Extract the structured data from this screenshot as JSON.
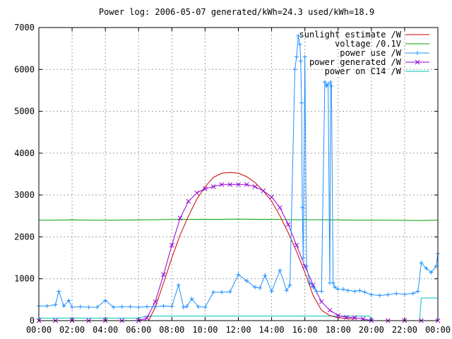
{
  "chart_data": {
    "type": "line",
    "title": "Power log: 2006-05-07 generated/kWh=24.3 used/kWh=18.9",
    "xlabel": "",
    "ylabel": "",
    "xlim": [
      0,
      24
    ],
    "ylim": [
      0,
      7000
    ],
    "x_ticks": [
      "00:00",
      "02:00",
      "04:00",
      "06:00",
      "08:00",
      "10:00",
      "12:00",
      "14:00",
      "16:00",
      "18:00",
      "20:00",
      "22:00",
      "00:00"
    ],
    "y_ticks": [
      "0",
      "1000",
      "2000",
      "3000",
      "4000",
      "5000",
      "6000",
      "7000"
    ],
    "grid": true,
    "legend_position": "top-right",
    "series": [
      {
        "name": "sunlight estimate /W",
        "color": "#cc0000",
        "marker": "none",
        "x": [
          6.6,
          7.0,
          7.5,
          8.0,
          8.5,
          9.0,
          9.5,
          10.0,
          10.5,
          11.0,
          11.5,
          12.0,
          12.5,
          13.0,
          13.5,
          14.0,
          14.5,
          15.0,
          15.5,
          16.0,
          16.5,
          17.0,
          17.5,
          18.0,
          18.5,
          19.0
        ],
        "y": [
          0,
          320,
          900,
          1500,
          2050,
          2500,
          2900,
          3200,
          3420,
          3520,
          3540,
          3520,
          3440,
          3300,
          3100,
          2850,
          2500,
          2100,
          1650,
          1150,
          600,
          250,
          120,
          70,
          50,
          40
        ]
      },
      {
        "name": "voltage /0.1V",
        "color": "#00a000",
        "marker": "none",
        "x": [
          0,
          1,
          2,
          3,
          4,
          5,
          6,
          7,
          8,
          9,
          10,
          11,
          12,
          13,
          14,
          15,
          16,
          17,
          18,
          19,
          20,
          21,
          22,
          23,
          24
        ],
        "y": [
          2400,
          2400,
          2405,
          2400,
          2400,
          2400,
          2405,
          2410,
          2415,
          2420,
          2420,
          2420,
          2425,
          2420,
          2420,
          2410,
          2410,
          2410,
          2405,
          2400,
          2400,
          2400,
          2395,
          2390,
          2400
        ]
      },
      {
        "name": "power use /W",
        "color": "#1e90ff",
        "marker": "plus",
        "x": [
          0,
          0.5,
          1.0,
          1.2,
          1.5,
          1.8,
          2.0,
          2.5,
          3.0,
          3.5,
          4.0,
          4.5,
          5.0,
          5.5,
          6.0,
          6.5,
          7.0,
          7.5,
          8.0,
          8.4,
          8.7,
          8.9,
          9.2,
          9.6,
          10.0,
          10.5,
          11.0,
          11.5,
          12.0,
          12.5,
          13.0,
          13.3,
          13.6,
          14.0,
          14.5,
          14.9,
          15.1,
          15.4,
          15.5,
          15.6,
          15.7,
          15.75,
          15.8,
          15.85,
          15.9,
          16.0,
          16.1,
          16.3,
          16.5,
          16.7,
          17.0,
          17.2,
          17.3,
          17.4,
          17.5,
          17.55,
          17.6,
          17.7,
          17.8,
          18.0,
          18.3,
          18.6,
          19.0,
          19.3,
          19.6,
          20.0,
          20.5,
          21.0,
          21.5,
          22.0,
          22.5,
          22.8,
          23.0,
          23.3,
          23.6,
          23.9,
          24.0
        ],
        "y": [
          350,
          350,
          380,
          700,
          350,
          480,
          320,
          330,
          320,
          320,
          480,
          320,
          330,
          330,
          320,
          330,
          330,
          350,
          340,
          850,
          320,
          340,
          520,
          330,
          320,
          680,
          680,
          690,
          1100,
          950,
          800,
          780,
          1080,
          700,
          1200,
          720,
          850,
          6000,
          6300,
          6800,
          6600,
          6200,
          5200,
          2700,
          1500,
          6300,
          1300,
          900,
          800,
          700,
          700,
          5700,
          5600,
          5650,
          900,
          5700,
          5600,
          900,
          800,
          750,
          750,
          720,
          700,
          720,
          680,
          620,
          600,
          620,
          650,
          630,
          650,
          700,
          1380,
          1250,
          1150,
          1300,
          1600
        ]
      },
      {
        "name": "power generated /W",
        "color": "#9400d3",
        "marker": "cross",
        "x": [
          0,
          1,
          2,
          3,
          4,
          5,
          6,
          6.5,
          7.0,
          7.5,
          8.0,
          8.5,
          9.0,
          9.5,
          10.0,
          10.5,
          11.0,
          11.5,
          12.0,
          12.5,
          13.0,
          13.5,
          14.0,
          14.5,
          15.0,
          15.5,
          16.0,
          16.5,
          17.0,
          17.5,
          18.0,
          18.5,
          19.0,
          19.5,
          20.0,
          21.0,
          22.0,
          23.0,
          24.0
        ],
        "y": [
          0,
          0,
          0,
          0,
          0,
          0,
          0,
          60,
          450,
          1100,
          1800,
          2450,
          2850,
          3050,
          3150,
          3200,
          3250,
          3250,
          3250,
          3250,
          3200,
          3100,
          2950,
          2700,
          2300,
          1800,
          1300,
          850,
          450,
          250,
          120,
          80,
          70,
          40,
          0,
          0,
          0,
          0,
          0
        ]
      },
      {
        "name": "power on C14 /W",
        "color": "#00c0c0",
        "marker": "none",
        "x": [
          0,
          0.01,
          6.0,
          6.5,
          12.0,
          15.0,
          18.0,
          19.9,
          20.0,
          22.5,
          22.9,
          23.0,
          24.0
        ],
        "y": [
          0,
          60,
          60,
          110,
          110,
          110,
          110,
          110,
          0,
          0,
          0,
          540,
          540
        ]
      }
    ]
  }
}
